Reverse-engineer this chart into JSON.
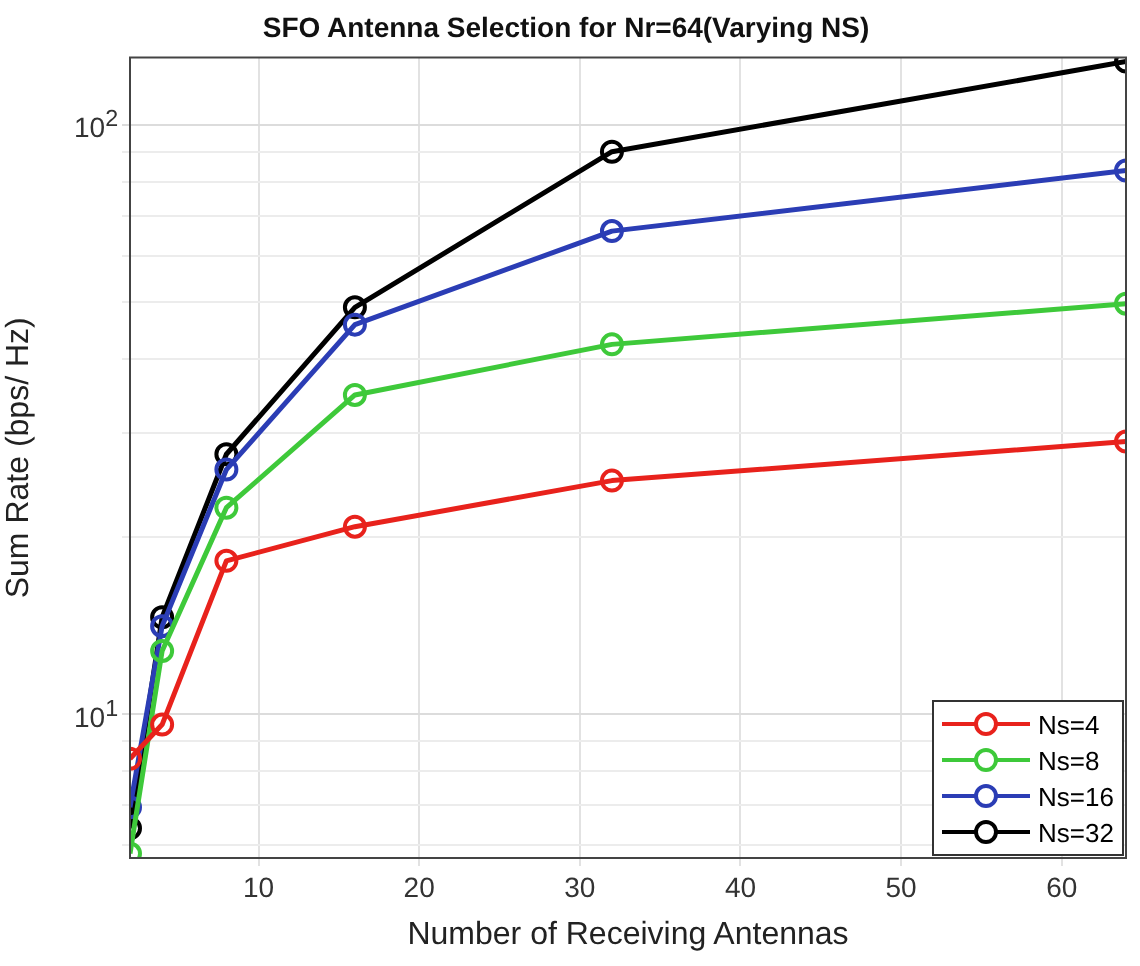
{
  "chart_data": {
    "type": "line",
    "title": "SFO Antenna Selection for Nr=64(Varying NS)",
    "xlabel": "Number of Receiving Antennas",
    "ylabel": "Sum Rate (bps/ Hz)",
    "x": [
      2,
      4,
      8,
      16,
      32,
      64
    ],
    "series": [
      {
        "name": "Ns=4",
        "color": "#e8221c",
        "values": [
          8.4,
          9.6,
          18.2,
          20.8,
          24.9,
          29
        ]
      },
      {
        "name": "Ns=8",
        "color": "#3ec93a",
        "values": [
          5.8,
          12.8,
          22.4,
          34.8,
          42.4,
          49.7
        ]
      },
      {
        "name": "Ns=16",
        "color": "#2b3db5",
        "values": [
          6.95,
          14.1,
          26,
          45.8,
          66,
          83.6
        ]
      },
      {
        "name": "Ns=32",
        "color": "#000000",
        "values": [
          6.4,
          14.6,
          27.6,
          49,
          90,
          128
        ]
      }
    ],
    "xlim": [
      2,
      64
    ],
    "xticks": [
      10,
      20,
      30,
      40,
      50,
      60
    ],
    "ylim": [
      5.7,
      130
    ],
    "yticks": [
      {
        "value": 6,
        "label": null
      },
      {
        "value": 7,
        "label": null
      },
      {
        "value": 8,
        "label": null
      },
      {
        "value": 9,
        "label": null
      },
      {
        "value": 10,
        "label": "10$^{1}$"
      },
      {
        "value": 20,
        "label": null
      },
      {
        "value": 30,
        "label": null
      },
      {
        "value": 40,
        "label": null
      },
      {
        "value": 50,
        "label": null
      },
      {
        "value": 60,
        "label": null
      },
      {
        "value": 70,
        "label": null
      },
      {
        "value": 80,
        "label": null
      },
      {
        "value": 90,
        "label": null
      },
      {
        "value": 100,
        "label": "10$^{2}$"
      }
    ],
    "log": "y",
    "grid": true,
    "legend": "bottom right",
    "marker": "circle",
    "line_style": "solid"
  }
}
